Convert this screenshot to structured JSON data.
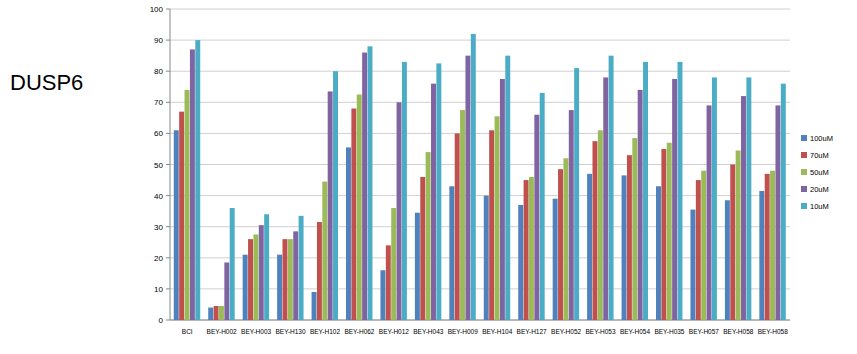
{
  "chart_data": {
    "type": "bar",
    "title": "DUSP6",
    "categories": [
      "BCI",
      "BEY-H002",
      "BEY-H003",
      "BEY-H130",
      "BEY-H102",
      "BEY-H062",
      "BEY-H012",
      "BEY-H043",
      "BEY-H009",
      "BEY-H104",
      "BEY-H127",
      "BEY-H052",
      "BEY-H053",
      "BEY-H054",
      "BEY-H035",
      "BEY-H057",
      "BEY-H058",
      "BEY-H058"
    ],
    "series": [
      {
        "name": "100uM",
        "color": "#4f81bd",
        "values": [
          61,
          4,
          21,
          21,
          9,
          55.5,
          16,
          34.5,
          43,
          40,
          37,
          39,
          47,
          46.5,
          43,
          35.5,
          38.5,
          41.5
        ]
      },
      {
        "name": "70uM",
        "color": "#c0504d",
        "values": [
          67,
          4.5,
          26,
          26,
          31.5,
          68,
          24,
          46,
          60,
          61,
          45,
          48.5,
          57.5,
          53,
          55,
          45,
          50,
          47
        ]
      },
      {
        "name": "50uM",
        "color": "#9bbb59",
        "values": [
          74,
          4.5,
          27.5,
          26,
          44.5,
          72.5,
          36,
          54,
          67.5,
          65.5,
          46,
          52,
          61,
          58.5,
          57,
          48,
          54.5,
          48
        ]
      },
      {
        "name": "20uM",
        "color": "#8064a2",
        "values": [
          87,
          18.5,
          30.5,
          28.5,
          73.5,
          86,
          70,
          76,
          85,
          77.5,
          66,
          67.5,
          78,
          74,
          77.5,
          69,
          72,
          69
        ]
      },
      {
        "name": "10uM",
        "color": "#4bacc6",
        "values": [
          90,
          36,
          34,
          33.5,
          80,
          88,
          83,
          82.5,
          92,
          85,
          73,
          81,
          85,
          83,
          83,
          78,
          78,
          76
        ]
      }
    ],
    "ylim": [
      0,
      100
    ],
    "yticks": [
      0,
      10,
      20,
      30,
      40,
      50,
      60,
      70,
      80,
      90,
      100
    ],
    "grid": true,
    "legend": "right"
  }
}
